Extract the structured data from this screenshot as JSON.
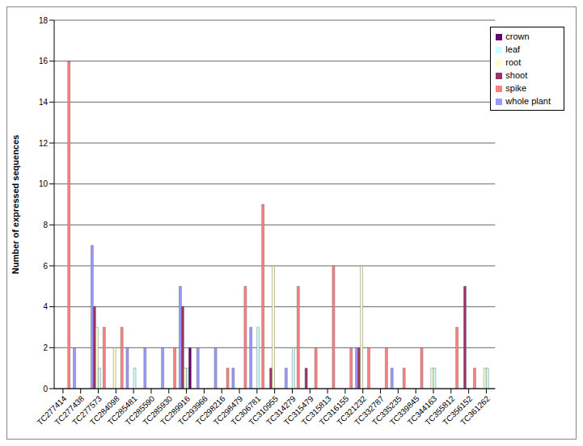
{
  "chart_data": {
    "type": "bar",
    "y_label": "Number of expressed sequences",
    "categories": [
      "TC277414",
      "TC277438",
      "TC277573",
      "TC284098",
      "TC285481",
      "TC285590",
      "TC285930",
      "TC289916",
      "TC293966",
      "TC298216",
      "TC298479",
      "TC306781",
      "TC310955",
      "TC314279",
      "TC315479",
      "TC315813",
      "TC316155",
      "TC321232",
      "TC332787",
      "TC335235",
      "TC339845",
      "TC344163",
      "TC355812",
      "TC356152",
      "TC361262"
    ],
    "series": [
      {
        "name": "whole plant",
        "color": "#9999ff",
        "values": [
          0,
          2,
          7,
          0,
          2,
          2,
          2,
          5,
          2,
          2,
          1,
          3,
          0,
          1,
          0,
          0,
          0,
          2,
          0,
          1,
          0,
          0,
          0,
          0,
          0
        ]
      },
      {
        "name": "shoot",
        "color": "#993366",
        "values": [
          0,
          0,
          4,
          0,
          0,
          0,
          0,
          4,
          0,
          0,
          0,
          0,
          1,
          0,
          1,
          0,
          0,
          2,
          0,
          0,
          0,
          0,
          0,
          5,
          0
        ]
      },
      {
        "name": "root",
        "color": "#ffffcc",
        "values": [
          0,
          0,
          3,
          2,
          0,
          0,
          0,
          1,
          0,
          0,
          0,
          0,
          6,
          0,
          0,
          0,
          0,
          6,
          0,
          0,
          0,
          1,
          0,
          0,
          1
        ]
      },
      {
        "name": "leaf",
        "color": "#ccffff",
        "values": [
          0,
          0,
          1,
          0,
          1,
          0,
          0,
          1,
          0,
          0,
          0,
          3,
          0,
          2,
          0,
          0,
          0,
          0,
          0,
          0,
          0,
          1,
          0,
          0,
          1
        ]
      },
      {
        "name": "crown",
        "color": "#660066",
        "values": [
          0,
          0,
          0,
          0,
          0,
          0,
          0,
          2,
          0,
          0,
          0,
          0,
          0,
          0,
          0,
          0,
          0,
          0,
          0,
          0,
          0,
          0,
          0,
          0,
          0
        ]
      },
      {
        "name": "spike",
        "color": "#ff8080",
        "values": [
          16,
          0,
          3,
          3,
          0,
          0,
          2,
          0,
          0,
          1,
          5,
          9,
          0,
          5,
          2,
          6,
          2,
          2,
          2,
          1,
          2,
          0,
          3,
          1,
          0
        ]
      }
    ],
    "ylim": [
      0,
      18
    ],
    "yticks": [
      0,
      2,
      4,
      6,
      8,
      10,
      12,
      14,
      16,
      18
    ],
    "grid": true,
    "legend": "top-right"
  }
}
